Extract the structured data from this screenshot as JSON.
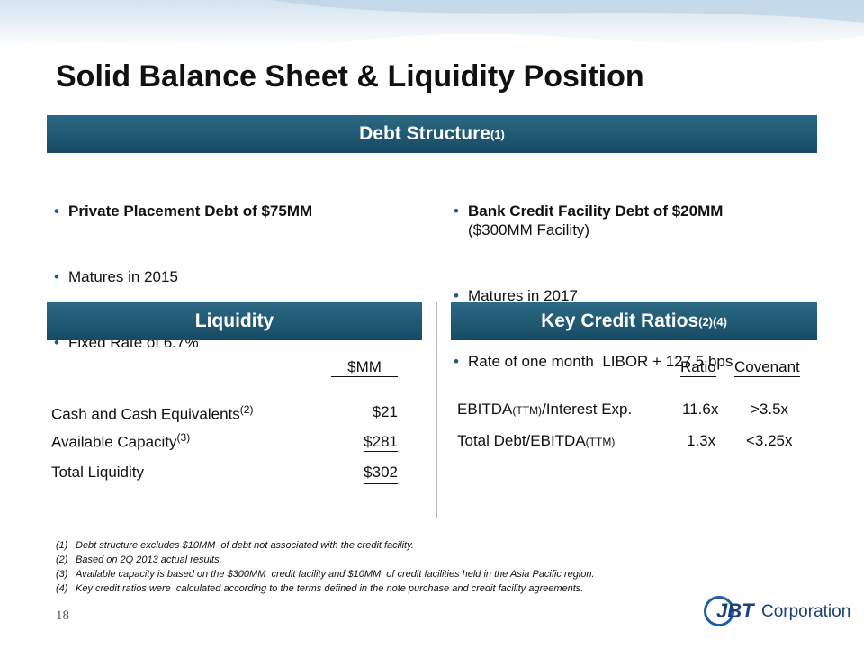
{
  "title": "Solid Balance Sheet & Liquidity Position",
  "debt_structure": {
    "header": "Debt Structure",
    "header_note": "(1)",
    "left": [
      "Private Placement Debt of $75MM",
      "Matures in 2015",
      "Fixed Rate of 6.7%"
    ],
    "right": [
      {
        "bold": "Bank Credit Facility Debt of $20MM",
        "sub": "($300MM Facility)"
      },
      {
        "text": "Matures in 2017"
      },
      {
        "text": "Rate of one month  LIBOR + 127.5 bps"
      }
    ]
  },
  "liquidity": {
    "header": "Liquidity",
    "column": "$MM",
    "rows": [
      {
        "label": "Cash and Cash Equivalents",
        "note": "(2)",
        "value": "$21"
      },
      {
        "label": "Available Capacity",
        "note": "(3)",
        "value": "$281"
      },
      {
        "label": "Total Liquidity",
        "value": "$302"
      }
    ]
  },
  "key_credit_ratios": {
    "header": "Key Credit Ratios",
    "header_note": "(2)(4)",
    "columns": [
      "Ratio",
      "Covenant"
    ],
    "rows": [
      {
        "label": [
          "EBITDA",
          "(TTM)",
          "/Interest Exp."
        ],
        "ratio": "11.6x",
        "covenant": ">3.5x"
      },
      {
        "label": [
          "Total Debt/EBITDA",
          "(TTM)"
        ],
        "ratio": "1.3x",
        "covenant": "<3.25x"
      }
    ]
  },
  "footnotes": [
    {
      "marker": "(1)",
      "text": "Debt structure excludes $10MM  of debt not associated with the credit facility."
    },
    {
      "marker": "(2)",
      "text": "Based on 2Q 2013 actual results."
    },
    {
      "marker": "(3)",
      "text": "Available capacity is based on the $300MM  credit facility and $10MM  of credit facilities held in the Asia Pacific region."
    },
    {
      "marker": "(4)",
      "text": "Key credit ratios were  calculated according to the terms defined in the note purchase and credit facility agreements."
    }
  ],
  "page_number": "18",
  "logo": {
    "mark": "JBT",
    "text": "Corporation"
  }
}
